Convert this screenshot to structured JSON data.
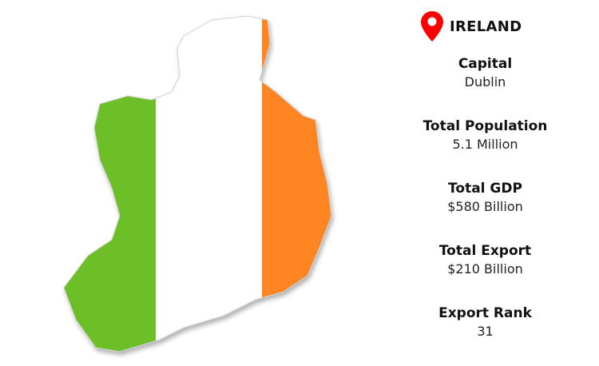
{
  "header": {
    "country": "IRELAND",
    "icon": "map-pin-icon",
    "pin_color": "#ff0000"
  },
  "flag_colors": {
    "green": "#6cbf26",
    "white": "#ffffff",
    "orange": "#ff8421"
  },
  "stats": [
    {
      "label": "Capital",
      "value": "Dublin"
    },
    {
      "label": "Total Population",
      "value": "5.1 Million"
    },
    {
      "label": "Total GDP",
      "value": "$580 Billion"
    },
    {
      "label": "Total Export",
      "value": "$210 Billion"
    },
    {
      "label": "Export Rank",
      "value": "31"
    }
  ]
}
